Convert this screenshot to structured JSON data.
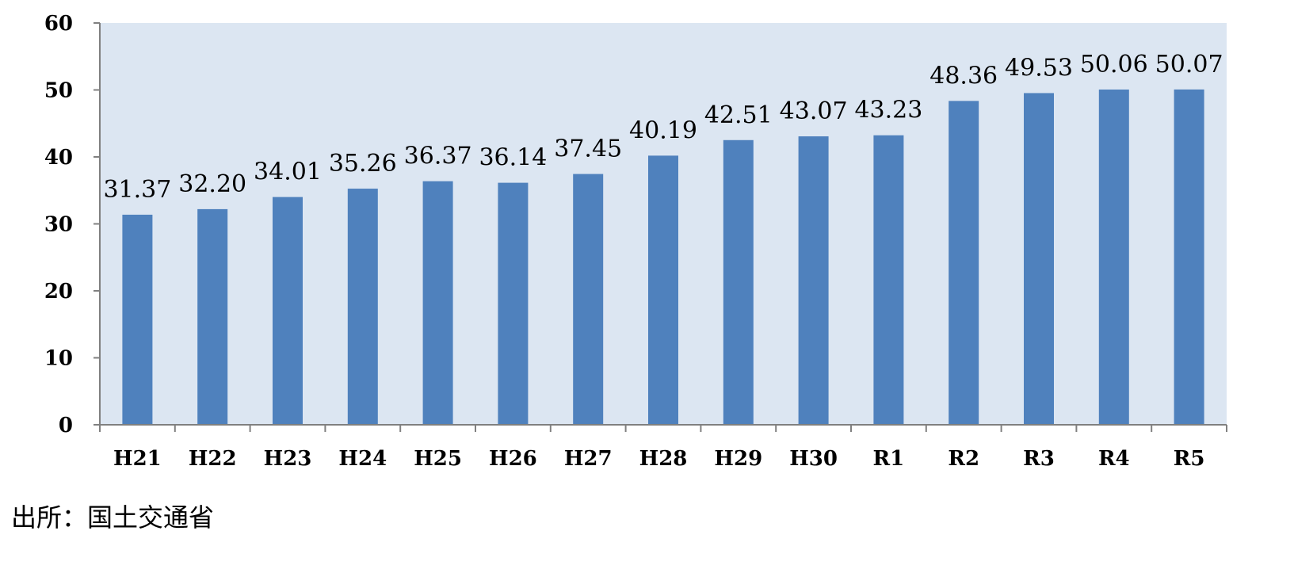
{
  "source_note": "出所：国土交通省",
  "colors": {
    "plot_background": "#dce6f2",
    "bar": "#4f81bd",
    "axis": "#808080"
  },
  "chart_data": {
    "type": "bar",
    "title": "",
    "xlabel": "",
    "ylabel": "",
    "categories": [
      "H21",
      "H22",
      "H23",
      "H24",
      "H25",
      "H26",
      "H27",
      "H28",
      "H29",
      "H30",
      "R1",
      "R2",
      "R3",
      "R4",
      "R5"
    ],
    "values": [
      31.37,
      32.2,
      34.01,
      35.26,
      36.37,
      36.14,
      37.45,
      40.19,
      42.51,
      43.07,
      43.23,
      48.36,
      49.53,
      50.06,
      50.07
    ],
    "value_labels": [
      "31.37",
      "32.20",
      "34.01",
      "35.26",
      "36.37",
      "36.14",
      "37.45",
      "40.19",
      "42.51",
      "43.07",
      "43.23",
      "48.36",
      "49.53",
      "50.06",
      "50.07"
    ],
    "ylim": [
      0,
      60
    ],
    "yticks": [
      0,
      10,
      20,
      30,
      40,
      50,
      60
    ],
    "grid": false,
    "legend": "none"
  }
}
